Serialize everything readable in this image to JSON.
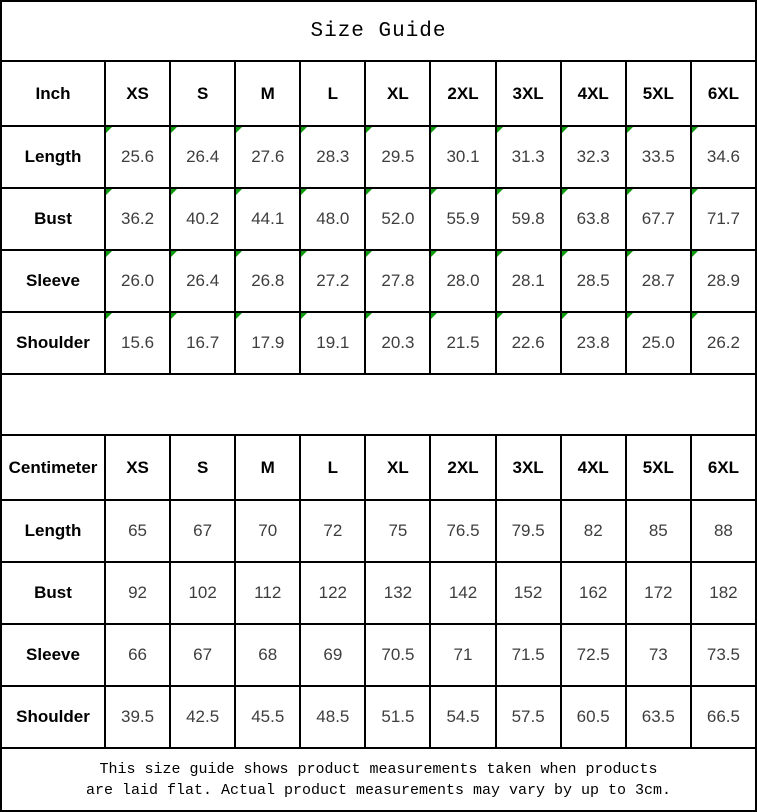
{
  "title": "Size Guide",
  "inch_table": {
    "unit_label": "Inch",
    "sizes": [
      "XS",
      "S",
      "M",
      "L",
      "XL",
      "2XL",
      "3XL",
      "4XL",
      "5XL",
      "6XL"
    ],
    "rows": [
      {
        "label": "Length",
        "values": [
          "25.6",
          "26.4",
          "27.6",
          "28.3",
          "29.5",
          "30.1",
          "31.3",
          "32.3",
          "33.5",
          "34.6"
        ]
      },
      {
        "label": "Bust",
        "values": [
          "36.2",
          "40.2",
          "44.1",
          "48.0",
          "52.0",
          "55.9",
          "59.8",
          "63.8",
          "67.7",
          "71.7"
        ]
      },
      {
        "label": "Sleeve",
        "values": [
          "26.0",
          "26.4",
          "26.8",
          "27.2",
          "27.8",
          "28.0",
          "28.1",
          "28.5",
          "28.7",
          "28.9"
        ]
      },
      {
        "label": "Shoulder",
        "values": [
          "15.6",
          "16.7",
          "17.9",
          "19.1",
          "20.3",
          "21.5",
          "22.6",
          "23.8",
          "25.0",
          "26.2"
        ]
      }
    ]
  },
  "cm_table": {
    "unit_label": "Centimeter",
    "sizes": [
      "XS",
      "S",
      "M",
      "L",
      "XL",
      "2XL",
      "3XL",
      "4XL",
      "5XL",
      "6XL"
    ],
    "rows": [
      {
        "label": "Length",
        "values": [
          "65",
          "67",
          "70",
          "72",
          "75",
          "76.5",
          "79.5",
          "82",
          "85",
          "88"
        ]
      },
      {
        "label": "Bust",
        "values": [
          "92",
          "102",
          "112",
          "122",
          "132",
          "142",
          "152",
          "162",
          "172",
          "182"
        ]
      },
      {
        "label": "Sleeve",
        "values": [
          "66",
          "67",
          "68",
          "69",
          "70.5",
          "71",
          "71.5",
          "72.5",
          "73",
          "73.5"
        ]
      },
      {
        "label": "Shoulder",
        "values": [
          "39.5",
          "42.5",
          "45.5",
          "48.5",
          "51.5",
          "54.5",
          "57.5",
          "60.5",
          "63.5",
          "66.5"
        ]
      }
    ]
  },
  "footer": {
    "line1": "This size guide shows product measurements taken when products",
    "line2": "are laid flat. Actual product measurements may vary by up to 3cm."
  },
  "colors": {
    "border": "#000000",
    "corner_marker": "#0b9b0b",
    "value_text": "#3e3e3e"
  },
  "icons": {
    "corner_marker": "green-corner-triangle-icon"
  }
}
